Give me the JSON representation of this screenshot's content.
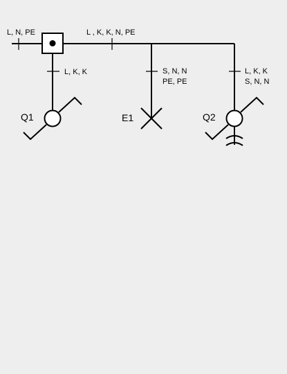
{
  "labels": {
    "feed_in": "L, N, PE",
    "main_bus": "L , K, K, N, PE",
    "branch_q1": "L, K, K",
    "branch_e1_line1": "S, N, N",
    "branch_e1_line2": "PE, PE",
    "branch_q2_line1": "L, K, K",
    "branch_q2_line2": "S, N, N"
  },
  "devices": {
    "q1": "Q1",
    "e1": "E1",
    "q2": "Q2"
  },
  "colors": {
    "background": "#eeeeee",
    "line": "#000000",
    "box_fill": "#ffffff",
    "motor_fill": "#ffffff"
  }
}
